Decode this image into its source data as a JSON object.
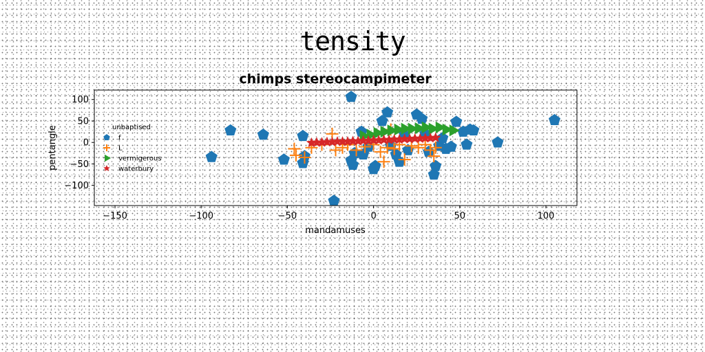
{
  "super_title": "tensity",
  "chart_data": {
    "type": "scatter",
    "title": "chimps stereocampimeter",
    "xlabel": "mandamuses",
    "ylabel": "pentangle",
    "xlim": [
      -162,
      118
    ],
    "ylim": [
      -147,
      122
    ],
    "xticks": [
      -150,
      -100,
      -50,
      0,
      50,
      100
    ],
    "yticks": [
      -100,
      -50,
      0,
      50,
      100
    ],
    "xtick_labels": [
      "−150",
      "−100",
      "−50",
      "0",
      "50",
      "100"
    ],
    "ytick_labels": [
      "−100",
      "−50",
      "0",
      "50",
      "100"
    ],
    "grid": false,
    "legend": {
      "title": "unbaptised",
      "placement": "center-left"
    },
    "series": [
      {
        "name": "f",
        "marker": "pentagon",
        "color": "#1f77b4",
        "points": [
          [
            -94,
            -34
          ],
          [
            -83,
            28
          ],
          [
            -64,
            18
          ],
          [
            -52,
            -40
          ],
          [
            -41,
            15
          ],
          [
            -41,
            -48
          ],
          [
            -40,
            -32
          ],
          [
            -23,
            -136
          ],
          [
            -13,
            106
          ],
          [
            -13,
            -42
          ],
          [
            -12,
            -52
          ],
          [
            -11,
            -25
          ],
          [
            -7,
            25
          ],
          [
            -6,
            -28
          ],
          [
            -3,
            -10
          ],
          [
            0,
            -62
          ],
          [
            1,
            -55
          ],
          [
            5,
            50
          ],
          [
            8,
            70
          ],
          [
            10,
            -8
          ],
          [
            13,
            -28
          ],
          [
            15,
            -45
          ],
          [
            18,
            18
          ],
          [
            20,
            -18
          ],
          [
            25,
            65
          ],
          [
            28,
            55
          ],
          [
            30,
            20
          ],
          [
            32,
            -22
          ],
          [
            35,
            -75
          ],
          [
            36,
            -55
          ],
          [
            38,
            -8
          ],
          [
            40,
            10
          ],
          [
            42,
            -15
          ],
          [
            45,
            -10
          ],
          [
            48,
            48
          ],
          [
            52,
            25
          ],
          [
            54,
            -5
          ],
          [
            56,
            30
          ],
          [
            58,
            28
          ],
          [
            72,
            0
          ],
          [
            105,
            52
          ]
        ]
      },
      {
        "name": "L",
        "marker": "plus",
        "color": "#ff7f0e",
        "points": [
          [
            -46,
            -15
          ],
          [
            -45,
            -30
          ],
          [
            -40,
            -35
          ],
          [
            -36,
            -12
          ],
          [
            -30,
            -5
          ],
          [
            -24,
            20
          ],
          [
            -22,
            -18
          ],
          [
            -18,
            -12
          ],
          [
            -15,
            -5
          ],
          [
            -10,
            -18
          ],
          [
            -5,
            -10
          ],
          [
            0,
            -5
          ],
          [
            4,
            -22
          ],
          [
            6,
            -45
          ],
          [
            8,
            -12
          ],
          [
            10,
            30
          ],
          [
            12,
            -15
          ],
          [
            15,
            -5
          ],
          [
            18,
            -40
          ],
          [
            22,
            -8
          ],
          [
            26,
            -12
          ],
          [
            30,
            -5
          ],
          [
            33,
            -18
          ],
          [
            35,
            -32
          ],
          [
            36,
            -12
          ]
        ]
      },
      {
        "name": "vermigerous",
        "marker": "triangle-right",
        "color": "#2ca02c",
        "points": [
          [
            -6,
            15
          ],
          [
            -2,
            18
          ],
          [
            2,
            22
          ],
          [
            6,
            25
          ],
          [
            10,
            28
          ],
          [
            14,
            30
          ],
          [
            18,
            32
          ],
          [
            22,
            32
          ],
          [
            26,
            33
          ],
          [
            30,
            35
          ],
          [
            34,
            32
          ],
          [
            38,
            35
          ],
          [
            42,
            30
          ],
          [
            46,
            28
          ]
        ]
      },
      {
        "name": "waterbury",
        "marker": "star",
        "color": "#d62728",
        "points": [
          [
            -36,
            -1
          ],
          [
            -33,
            0
          ],
          [
            -30,
            0
          ],
          [
            -27,
            1
          ],
          [
            -24,
            1
          ],
          [
            -21,
            2
          ],
          [
            -18,
            2
          ],
          [
            -15,
            2
          ],
          [
            -12,
            3
          ],
          [
            -9,
            3
          ],
          [
            -6,
            4
          ],
          [
            -3,
            4
          ],
          [
            0,
            5
          ],
          [
            3,
            5
          ],
          [
            6,
            6
          ],
          [
            9,
            6
          ],
          [
            12,
            7
          ],
          [
            15,
            7
          ],
          [
            18,
            8
          ],
          [
            21,
            8
          ],
          [
            24,
            9
          ],
          [
            27,
            9
          ],
          [
            30,
            10
          ],
          [
            33,
            10
          ],
          [
            36,
            11
          ]
        ]
      }
    ]
  }
}
